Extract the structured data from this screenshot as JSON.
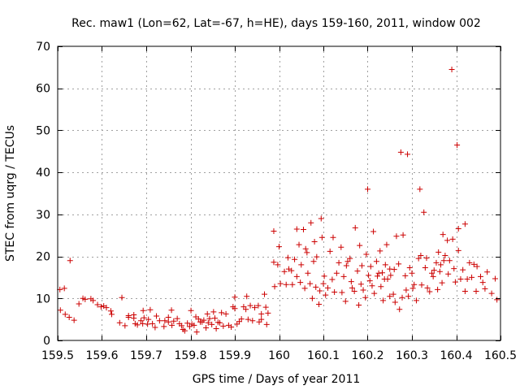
{
  "chart_data": {
    "type": "scatter",
    "title": "Rec. maw1 (Lon=62, Lat=-67, h=HE), days 159-160, 2011, window 002",
    "xlabel": "GPS time / Days of year 2011",
    "ylabel": "STEC from uqrg / TECUs",
    "xlim": [
      159.5,
      160.5
    ],
    "ylim": [
      0,
      70
    ],
    "xticks": [
      159.5,
      159.6,
      159.7,
      159.8,
      159.9,
      160,
      160.1,
      160.2,
      160.3,
      160.4,
      160.5
    ],
    "xtick_labels": [
      "159.5",
      "159.6",
      "159.7",
      "159.8",
      "159.9",
      "160",
      "160.1",
      "160.2",
      "160.3",
      "160.4",
      "160.5"
    ],
    "yticks": [
      0,
      10,
      20,
      30,
      40,
      50,
      60,
      70
    ],
    "ytick_labels": [
      "0",
      "10",
      "20",
      "30",
      "40",
      "50",
      "60",
      "70"
    ],
    "grid": true,
    "marker": "plus",
    "colors": {
      "points": "#cc0000",
      "frame": "#000000",
      "grid": "#a0a0a0"
    },
    "series": [
      {
        "name": "STEC",
        "points": [
          [
            159.505,
            12.1
          ],
          [
            159.506,
            7.2
          ],
          [
            159.517,
            6.2
          ],
          [
            159.515,
            12.4
          ],
          [
            159.526,
            5.5
          ],
          [
            159.528,
            19.0
          ],
          [
            159.537,
            4.8
          ],
          [
            159.548,
            8.7
          ],
          [
            159.557,
            10.0
          ],
          [
            159.562,
            9.8
          ],
          [
            159.575,
            9.9
          ],
          [
            159.58,
            9.5
          ],
          [
            159.59,
            8.5
          ],
          [
            159.598,
            8.0
          ],
          [
            159.604,
            8.2
          ],
          [
            159.61,
            7.8
          ],
          [
            159.62,
            7.0
          ],
          [
            159.622,
            6.2
          ],
          [
            159.64,
            4.2
          ],
          [
            159.645,
            10.2
          ],
          [
            159.652,
            3.5
          ],
          [
            159.66,
            5.5
          ],
          [
            159.66,
            5.9
          ],
          [
            159.672,
            6.1
          ],
          [
            159.672,
            5.3
          ],
          [
            159.675,
            4.0
          ],
          [
            159.68,
            3.7
          ],
          [
            159.688,
            4.7
          ],
          [
            159.692,
            4.0
          ],
          [
            159.693,
            7.1
          ],
          [
            159.695,
            5.4
          ],
          [
            159.703,
            3.9
          ],
          [
            159.705,
            5.0
          ],
          [
            159.709,
            7.3
          ],
          [
            159.714,
            4.0
          ],
          [
            159.72,
            3.1
          ],
          [
            159.723,
            5.8
          ],
          [
            159.73,
            4.7
          ],
          [
            159.74,
            3.3
          ],
          [
            159.742,
            4.7
          ],
          [
            159.75,
            5.5
          ],
          [
            159.75,
            4.4
          ],
          [
            159.757,
            7.2
          ],
          [
            159.758,
            3.6
          ],
          [
            159.762,
            4.6
          ],
          [
            159.77,
            5.2
          ],
          [
            159.775,
            4.0
          ],
          [
            159.78,
            3.5
          ],
          [
            159.783,
            2.6
          ],
          [
            159.787,
            2.3
          ],
          [
            159.793,
            4.1
          ],
          [
            159.798,
            3.3
          ],
          [
            159.801,
            7.1
          ],
          [
            159.803,
            3.9
          ],
          [
            159.808,
            3.6
          ],
          [
            159.812,
            5.6
          ],
          [
            159.814,
            2.0
          ],
          [
            159.818,
            5.1
          ],
          [
            159.822,
            4.4
          ],
          [
            159.826,
            4.4
          ],
          [
            159.83,
            4.8
          ],
          [
            159.835,
            3.0
          ],
          [
            159.838,
            6.3
          ],
          [
            159.84,
            4.2
          ],
          [
            159.843,
            5.2
          ],
          [
            159.848,
            3.8
          ],
          [
            159.852,
            6.8
          ],
          [
            159.855,
            5.3
          ],
          [
            159.858,
            2.8
          ],
          [
            159.862,
            4.3
          ],
          [
            159.866,
            4.2
          ],
          [
            159.87,
            6.6
          ],
          [
            159.874,
            3.4
          ],
          [
            159.88,
            6.3
          ],
          [
            159.886,
            3.6
          ],
          [
            159.892,
            3.2
          ],
          [
            159.896,
            8.0
          ],
          [
            159.9,
            10.3
          ],
          [
            159.9,
            7.6
          ],
          [
            159.905,
            3.9
          ],
          [
            159.91,
            4.5
          ],
          [
            159.915,
            5.1
          ],
          [
            159.92,
            8.0
          ],
          [
            159.925,
            7.4
          ],
          [
            159.927,
            10.5
          ],
          [
            159.93,
            5.0
          ],
          [
            159.935,
            8.3
          ],
          [
            159.94,
            4.7
          ],
          [
            159.945,
            7.8
          ],
          [
            159.953,
            8.3
          ],
          [
            159.955,
            4.4
          ],
          [
            159.96,
            6.3
          ],
          [
            159.96,
            5.0
          ],
          [
            159.967,
            11.0
          ],
          [
            159.97,
            7.9
          ],
          [
            159.972,
            3.8
          ],
          [
            159.975,
            6.5
          ],
          [
            159.988,
            26.0
          ],
          [
            159.988,
            18.6
          ],
          [
            159.99,
            12.8
          ],
          [
            159.997,
            18.0
          ],
          [
            160.0,
            22.3
          ],
          [
            160.003,
            13.5
          ],
          [
            160.012,
            16.4
          ],
          [
            160.016,
            13.3
          ],
          [
            160.02,
            19.7
          ],
          [
            160.022,
            17.0
          ],
          [
            160.028,
            16.6
          ],
          [
            160.03,
            13.3
          ],
          [
            160.035,
            19.3
          ],
          [
            160.04,
            26.5
          ],
          [
            160.04,
            15.2
          ],
          [
            160.045,
            22.8
          ],
          [
            160.048,
            13.8
          ],
          [
            160.05,
            18.0
          ],
          [
            160.055,
            26.4
          ],
          [
            160.058,
            12.4
          ],
          [
            160.06,
            21.8
          ],
          [
            160.063,
            20.9
          ],
          [
            160.065,
            16.0
          ],
          [
            160.07,
            13.5
          ],
          [
            160.072,
            28.0
          ],
          [
            160.075,
            10.0
          ],
          [
            160.078,
            18.8
          ],
          [
            160.08,
            23.5
          ],
          [
            160.083,
            12.7
          ],
          [
            160.085,
            19.9
          ],
          [
            160.09,
            8.6
          ],
          [
            160.092,
            11.8
          ],
          [
            160.095,
            29.0
          ],
          [
            160.097,
            24.5
          ],
          [
            160.1,
            13.5
          ],
          [
            160.102,
            15.3
          ],
          [
            160.105,
            10.8
          ],
          [
            160.11,
            12.5
          ],
          [
            160.115,
            21.2
          ],
          [
            160.12,
            14.5
          ],
          [
            160.122,
            24.5
          ],
          [
            160.125,
            11.5
          ],
          [
            160.13,
            16.0
          ],
          [
            160.135,
            18.5
          ],
          [
            160.14,
            22.2
          ],
          [
            160.142,
            11.4
          ],
          [
            160.146,
            15.2
          ],
          [
            160.15,
            9.3
          ],
          [
            160.152,
            17.8
          ],
          [
            160.155,
            18.8
          ],
          [
            160.16,
            19.5
          ],
          [
            160.163,
            14.0
          ],
          [
            160.165,
            12.5
          ],
          [
            160.17,
            11.7
          ],
          [
            160.172,
            26.8
          ],
          [
            160.177,
            16.5
          ],
          [
            160.18,
            8.4
          ],
          [
            160.182,
            22.6
          ],
          [
            160.185,
            13.4
          ],
          [
            160.187,
            17.8
          ],
          [
            160.19,
            12.0
          ],
          [
            160.195,
            10.2
          ],
          [
            160.197,
            20.5
          ],
          [
            160.2,
            36.0
          ],
          [
            160.202,
            15.5
          ],
          [
            160.205,
            14.2
          ],
          [
            160.207,
            17.6
          ],
          [
            160.21,
            13.0
          ],
          [
            160.213,
            25.9
          ],
          [
            160.215,
            11.2
          ],
          [
            160.22,
            18.8
          ],
          [
            160.222,
            15.3
          ],
          [
            160.225,
            16.0
          ],
          [
            160.228,
            21.3
          ],
          [
            160.23,
            12.8
          ],
          [
            160.233,
            16.1
          ],
          [
            160.235,
            9.5
          ],
          [
            160.238,
            14.6
          ],
          [
            160.24,
            18.0
          ],
          [
            160.243,
            22.8
          ],
          [
            160.245,
            14.6
          ],
          [
            160.25,
            10.5
          ],
          [
            160.25,
            17.0
          ],
          [
            160.252,
            15.5
          ],
          [
            160.258,
            11.0
          ],
          [
            160.26,
            16.9
          ],
          [
            160.262,
            9.1
          ],
          [
            160.265,
            24.8
          ],
          [
            160.27,
            18.2
          ],
          [
            160.272,
            7.4
          ],
          [
            160.275,
            44.8
          ],
          [
            160.278,
            10.2
          ],
          [
            160.28,
            25.1
          ],
          [
            160.285,
            15.4
          ],
          [
            160.287,
            12.0
          ],
          [
            160.29,
            44.3
          ],
          [
            160.292,
            10.5
          ],
          [
            160.295,
            17.3
          ],
          [
            160.3,
            16.0
          ],
          [
            160.302,
            12.4
          ],
          [
            160.305,
            13.3
          ],
          [
            160.31,
            9.5
          ],
          [
            160.315,
            19.5
          ],
          [
            160.318,
            36.0
          ],
          [
            160.32,
            20.2
          ],
          [
            160.322,
            13.2
          ],
          [
            160.327,
            30.5
          ],
          [
            160.33,
            17.3
          ],
          [
            160.333,
            19.6
          ],
          [
            160.335,
            12.5
          ],
          [
            160.34,
            11.6
          ],
          [
            160.345,
            16.0
          ],
          [
            160.348,
            15.2
          ],
          [
            160.35,
            16.7
          ],
          [
            160.355,
            18.5
          ],
          [
            160.358,
            12.1
          ],
          [
            160.36,
            21.0
          ],
          [
            160.363,
            16.4
          ],
          [
            160.365,
            18.0
          ],
          [
            160.368,
            13.7
          ],
          [
            160.37,
            25.2
          ],
          [
            160.372,
            19.0
          ],
          [
            160.375,
            20.2
          ],
          [
            160.38,
            23.8
          ],
          [
            160.382,
            15.8
          ],
          [
            160.385,
            19.0
          ],
          [
            160.39,
            64.5
          ],
          [
            160.392,
            24.1
          ],
          [
            160.395,
            17.1
          ],
          [
            160.398,
            13.9
          ],
          [
            160.402,
            46.5
          ],
          [
            160.405,
            26.6
          ],
          [
            160.405,
            21.4
          ],
          [
            160.41,
            14.6
          ],
          [
            160.415,
            16.8
          ],
          [
            160.42,
            27.7
          ],
          [
            160.42,
            11.7
          ],
          [
            160.425,
            14.6
          ],
          [
            160.43,
            18.5
          ],
          [
            160.435,
            15.0
          ],
          [
            160.44,
            18.1
          ],
          [
            160.445,
            11.7
          ],
          [
            160.447,
            17.6
          ],
          [
            160.455,
            15.2
          ],
          [
            160.46,
            13.8
          ],
          [
            160.465,
            12.3
          ],
          [
            160.47,
            16.3
          ],
          [
            160.48,
            11.2
          ],
          [
            160.488,
            14.7
          ],
          [
            160.492,
            9.7
          ]
        ]
      }
    ]
  }
}
